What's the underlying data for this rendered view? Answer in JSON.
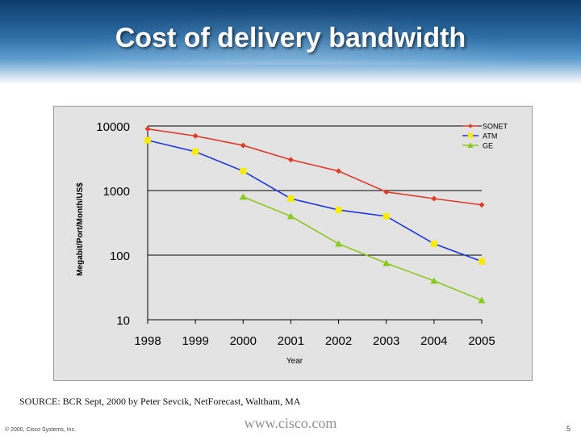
{
  "slide": {
    "title": "Cost of delivery bandwidth",
    "source": "SOURCE: BCR Sept, 2000 by Peter Sevcik, NetForecast, Waltham, MA",
    "footer_copyright": "© 2000, Cisco Systems, Inc.",
    "footer_url": "www.cisco.com",
    "page_number": "5"
  },
  "colors": {
    "banner_top": "#0d3c6b",
    "chart_background": "#e3e3e3",
    "sonet": "#e03a2a",
    "atm_line": "#1f37d8",
    "atm_marker": "#f6ea10",
    "ge": "#8cc81e"
  },
  "chart_data": {
    "type": "line",
    "title": "",
    "xlabel": "Year",
    "ylabel": "Megabit/Port/Month/US$",
    "y_scale": "log",
    "ylim": [
      10,
      10000
    ],
    "y_ticks": [
      "10000",
      "1000",
      "100",
      "10"
    ],
    "y_tick_values": [
      10000,
      1000,
      100,
      10
    ],
    "categories": [
      "1998",
      "1999",
      "2000",
      "2001",
      "2002",
      "2003",
      "2004",
      "2005"
    ],
    "grid": "horizontal",
    "legend_position": "top-right",
    "series": [
      {
        "name": "SONET",
        "marker": "diamond",
        "values": [
          9000,
          7000,
          5000,
          3000,
          2000,
          950,
          750,
          600
        ]
      },
      {
        "name": "ATM",
        "marker": "square",
        "values": [
          6000,
          4000,
          2000,
          750,
          500,
          400,
          150,
          80
        ]
      },
      {
        "name": "GE",
        "marker": "triangle",
        "values": [
          null,
          null,
          800,
          400,
          150,
          75,
          40,
          20
        ]
      }
    ]
  }
}
